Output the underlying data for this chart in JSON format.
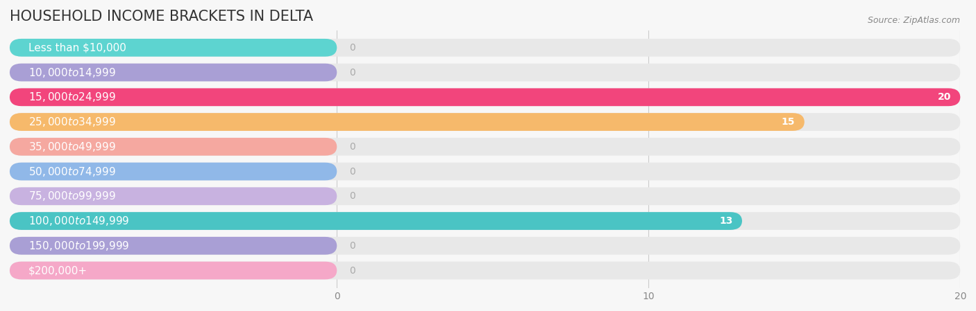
{
  "title": "HOUSEHOLD INCOME BRACKETS IN DELTA",
  "source": "Source: ZipAtlas.com",
  "categories": [
    "Less than $10,000",
    "$10,000 to $14,999",
    "$15,000 to $24,999",
    "$25,000 to $34,999",
    "$35,000 to $49,999",
    "$50,000 to $74,999",
    "$75,000 to $99,999",
    "$100,000 to $149,999",
    "$150,000 to $199,999",
    "$200,000+"
  ],
  "values": [
    0,
    0,
    20,
    15,
    0,
    0,
    0,
    13,
    0,
    0
  ],
  "bar_colors": [
    "#5dd4d0",
    "#a99fd5",
    "#f2457c",
    "#f6b96b",
    "#f5a8a0",
    "#90b8e8",
    "#c8b2e0",
    "#4ac4c4",
    "#a99fd5",
    "#f5a8c8"
  ],
  "xlim_data": [
    0,
    20
  ],
  "xticks": [
    0,
    10,
    20
  ],
  "background_color": "#f7f7f7",
  "bar_bg_color": "#e8e8e8",
  "title_fontsize": 15,
  "source_fontsize": 9,
  "label_fontsize": 11,
  "value_fontsize": 10
}
